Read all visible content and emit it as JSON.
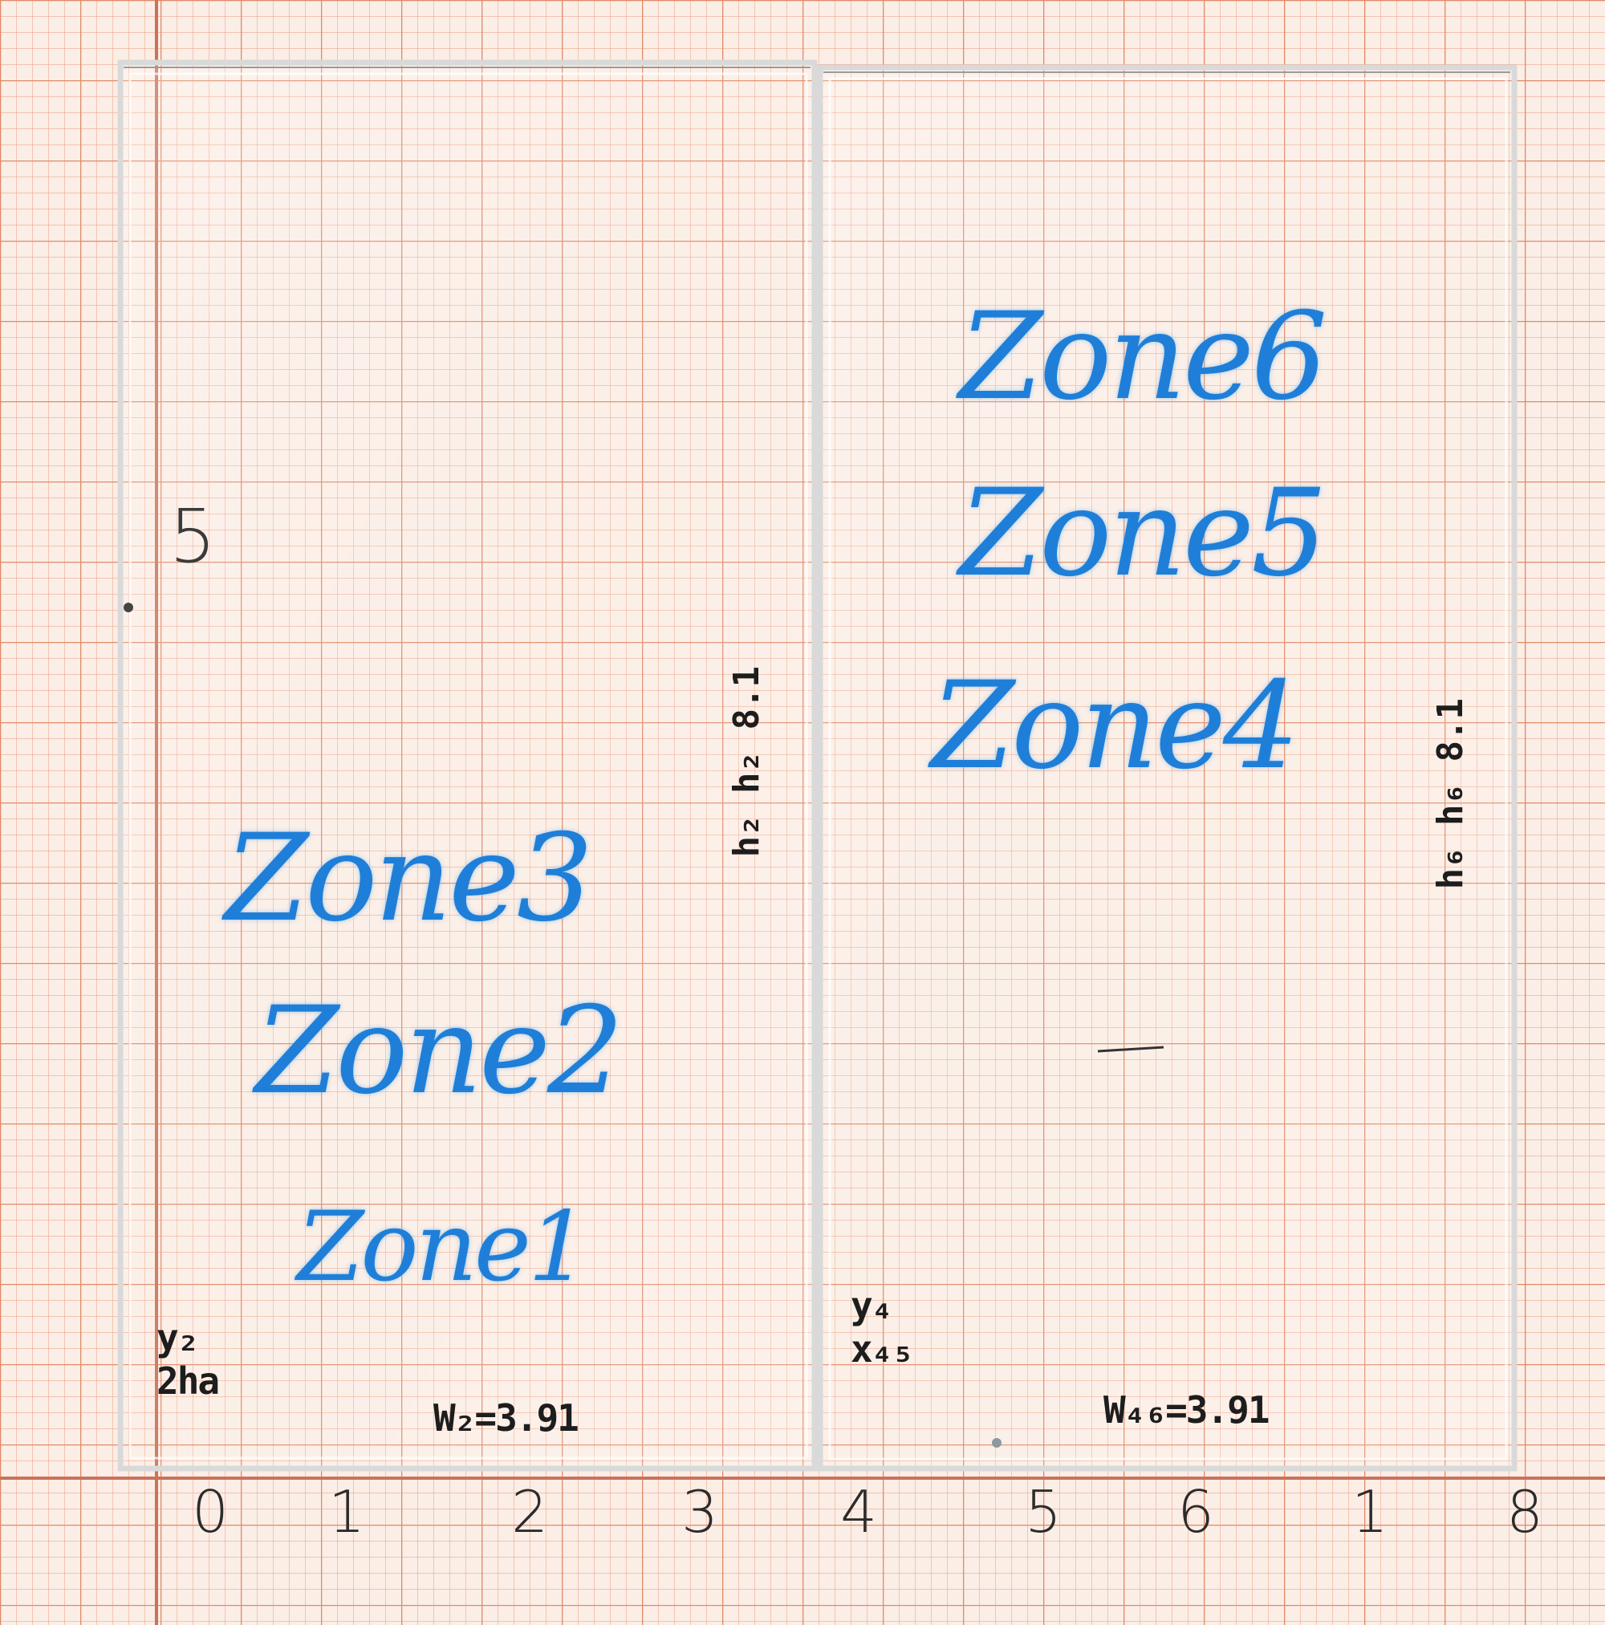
{
  "paper": {
    "background": "#fbeee6",
    "grid_color": "#e89a7c"
  },
  "axis": {
    "x_labels": [
      "0",
      "1",
      "2",
      "3",
      "4",
      "5",
      "6",
      "1",
      "8"
    ],
    "y_labels": [
      "5"
    ]
  },
  "left_slide": {
    "zones": [
      "Zone3",
      "Zone2",
      "Zone1"
    ],
    "side_note": "h₂ h₂ 8.1",
    "bottom_note": "W₂=3.91",
    "corner_note": "y₂ 2ha"
  },
  "right_slide": {
    "zones": [
      "Zone6",
      "Zone5",
      "Zone4"
    ],
    "side_note": "h₆ h₆ 8.1",
    "bottom_note": "W₄₆=3.91",
    "corner_note": "y₄ x₄₅"
  },
  "colors": {
    "ink_blue": "#1f7fd8",
    "ink_black": "#1d1d1d"
  }
}
